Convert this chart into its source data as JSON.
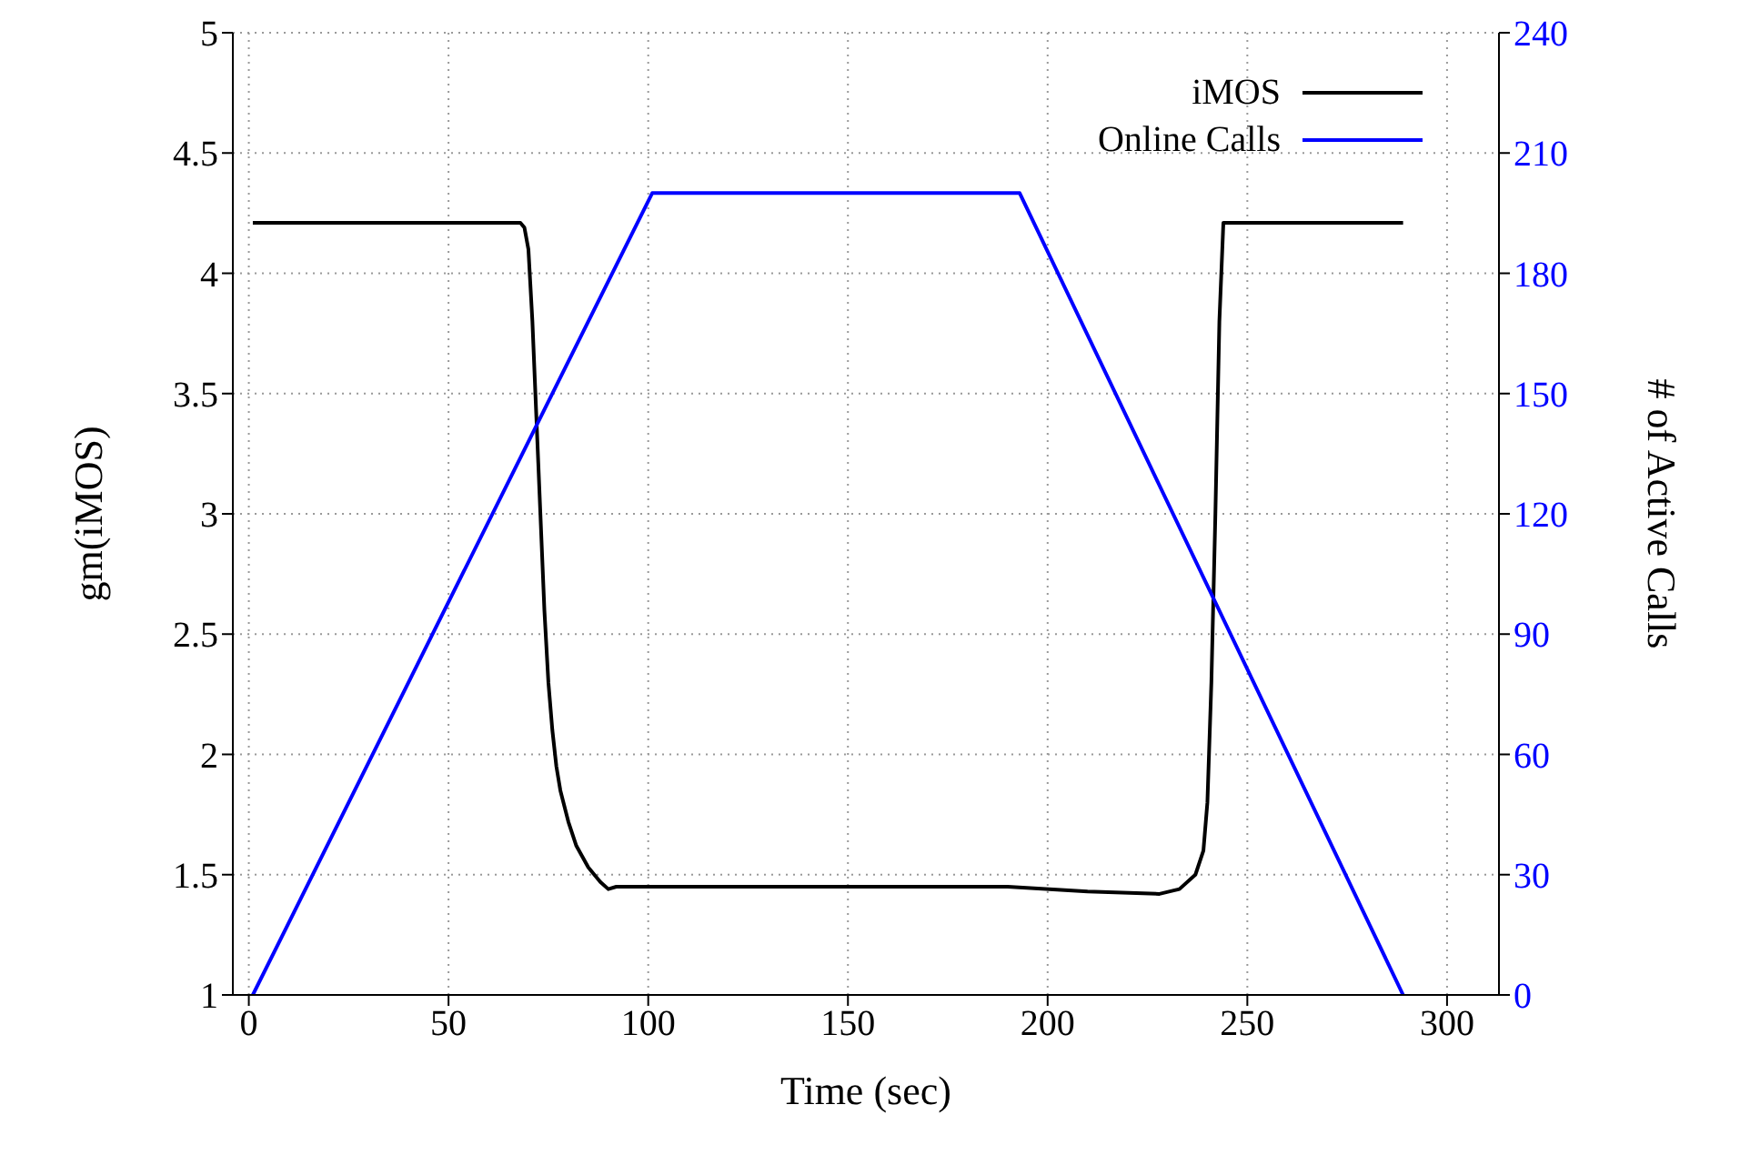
{
  "chart_data": {
    "type": "line",
    "xlabel": "Time (sec)",
    "ylabel": "gm(iMOS)",
    "y2label": "# of Active Calls",
    "xlim": [
      -4,
      313
    ],
    "xticks": [
      0,
      50,
      100,
      150,
      200,
      250,
      300
    ],
    "ylim": [
      1,
      5
    ],
    "yticks": [
      1,
      1.5,
      2,
      2.5,
      3,
      3.5,
      4,
      4.5,
      5
    ],
    "y2lim": [
      0,
      240
    ],
    "y2ticks": [
      0,
      30,
      60,
      90,
      120,
      150,
      180,
      210,
      240
    ],
    "grid": true,
    "legend": "top right",
    "marker": "none",
    "line_style": "solid",
    "series": [
      {
        "name": "iMOS",
        "color": "#000000",
        "x": [
          1,
          68,
          69,
          70,
          71,
          72,
          73,
          74,
          75,
          76,
          77,
          78,
          80,
          82,
          85,
          88,
          90,
          92,
          150,
          190,
          210,
          228,
          233,
          237,
          239,
          240,
          241,
          242,
          243,
          244,
          289
        ],
        "values": [
          4.21,
          4.21,
          4.19,
          4.1,
          3.8,
          3.4,
          3.0,
          2.6,
          2.3,
          2.1,
          1.95,
          1.85,
          1.72,
          1.62,
          1.53,
          1.47,
          1.44,
          1.45,
          1.45,
          1.45,
          1.43,
          1.42,
          1.44,
          1.5,
          1.6,
          1.8,
          2.3,
          3.0,
          3.8,
          4.21,
          4.21
        ]
      },
      {
        "name": "Online Calls",
        "color": "#0000ff",
        "axis": "y2",
        "x": [
          1,
          101,
          193,
          289
        ],
        "values": [
          0,
          200,
          200,
          0
        ]
      }
    ]
  }
}
